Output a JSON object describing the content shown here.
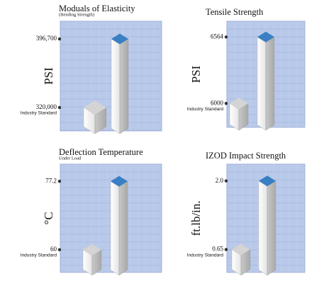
{
  "chart_data": [
    {
      "type": "bar",
      "title": "Moduals of Elasticity",
      "subtitle": "(Bending Strength)",
      "ylabel": "PSI",
      "categories": [
        null,
        null
      ],
      "values": [
        320000,
        396700
      ],
      "colors": [
        "#d4d4d4",
        "#3a7fc4"
      ],
      "ylim": [
        293900,
        416500
      ],
      "yticks": [
        {
          "value": 320000,
          "label": "320,000"
        },
        {
          "value": 396700,
          "label": "396,700"
        }
      ],
      "annotation": "Industry Standard"
    },
    {
      "type": "bar",
      "title": "Tensile Strength",
      "ylabel": "PSI",
      "categories": [
        null,
        null
      ],
      "values": [
        6000,
        6564
      ],
      "colors": [
        "#d4d4d4",
        "#3a7fc4"
      ],
      "ylim": [
        5797,
        6698
      ],
      "yticks": [
        6000,
        6564
      ],
      "annotation": "Industry Standard"
    },
    {
      "type": "bar",
      "title": "Deflection Temperature",
      "subtitle": "Under Load",
      "ylabel": "°C",
      "categories": [
        null,
        null
      ],
      "values": [
        60,
        77.2
      ],
      "colors": [
        "#d4d4d4",
        "#3a7fc4"
      ],
      "ylim": [
        54.3,
        81.5
      ],
      "yticks": [
        60,
        77.2
      ],
      "annotation": "Industry Standard"
    },
    {
      "type": "bar",
      "title": "IZOD Impact Strength",
      "ylabel": "ft.lb/in.",
      "categories": [
        null,
        null
      ],
      "values": [
        0.65,
        2.0
      ],
      "colors": [
        "#d4d4d4",
        "#3a7fc4"
      ],
      "ylim": [
        0.2,
        2.33
      ],
      "yticks": [
        0.65,
        {
          "value": 2.0,
          "label": "2.0"
        }
      ],
      "annotation": "Industry Standard"
    }
  ]
}
